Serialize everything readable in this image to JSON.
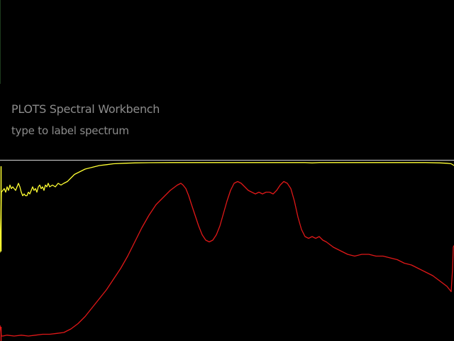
{
  "app": {
    "title": "PLOTS Spectral Workbench"
  },
  "label_input": {
    "placeholder": "type to label spectrum",
    "value": ""
  },
  "colors": {
    "background": "#000000",
    "text": "#8c8c8c",
    "divider": "#d8d8d8",
    "trace_yellow": "#ffff33",
    "trace_red": "#e01818"
  },
  "chart_data": {
    "type": "line",
    "title": "",
    "xlabel": "",
    "ylabel": "",
    "grid": false,
    "xlim": [
      0,
      640
    ],
    "ylim": [
      0,
      1
    ],
    "series": [
      {
        "color": "#ffff33",
        "x": [
          0,
          2,
          4,
          6,
          8,
          10,
          12,
          14,
          16,
          18,
          20,
          22,
          24,
          26,
          28,
          30,
          32,
          34,
          36,
          38,
          40,
          42,
          44,
          46,
          48,
          50,
          52,
          54,
          56,
          58,
          60,
          62,
          64,
          66,
          68,
          70,
          74,
          78,
          82,
          86,
          90,
          95,
          100,
          105,
          110,
          115,
          120,
          130,
          140,
          150,
          160,
          175,
          190,
          210,
          240,
          280,
          320,
          360,
          400,
          430,
          440,
          450,
          460,
          480,
          520,
          560,
          600,
          620,
          630,
          636,
          640
        ],
        "values": [
          0.49,
          0.83,
          0.84,
          0.85,
          0.83,
          0.86,
          0.84,
          0.87,
          0.85,
          0.86,
          0.85,
          0.84,
          0.86,
          0.88,
          0.86,
          0.83,
          0.81,
          0.82,
          0.81,
          0.81,
          0.83,
          0.82,
          0.84,
          0.86,
          0.84,
          0.85,
          0.83,
          0.86,
          0.87,
          0.85,
          0.86,
          0.84,
          0.87,
          0.86,
          0.88,
          0.86,
          0.87,
          0.86,
          0.88,
          0.87,
          0.88,
          0.89,
          0.91,
          0.93,
          0.94,
          0.95,
          0.96,
          0.97,
          0.98,
          0.985,
          0.99,
          0.993,
          0.995,
          0.996,
          0.997,
          0.997,
          0.997,
          0.997,
          0.997,
          0.997,
          0.995,
          0.997,
          0.997,
          0.997,
          0.997,
          0.997,
          0.997,
          0.995,
          0.993,
          0.99,
          0.98
        ]
      },
      {
        "color": "#e01818",
        "x": [
          0,
          2,
          4,
          10,
          20,
          30,
          40,
          50,
          60,
          70,
          80,
          90,
          100,
          110,
          120,
          130,
          140,
          150,
          160,
          170,
          180,
          190,
          200,
          210,
          220,
          230,
          240,
          250,
          255,
          258,
          262,
          266,
          270,
          275,
          280,
          285,
          290,
          295,
          300,
          305,
          310,
          315,
          320,
          325,
          330,
          335,
          340,
          345,
          350,
          355,
          360,
          365,
          370,
          375,
          380,
          385,
          390,
          395,
          400,
          405,
          410,
          415,
          420,
          425,
          430,
          435,
          440,
          445,
          450,
          455,
          460,
          470,
          480,
          490,
          500,
          510,
          520,
          530,
          540,
          550,
          560,
          570,
          580,
          590,
          600,
          610,
          620,
          630,
          636,
          638,
          639,
          640
        ],
        "values": [
          0.08,
          0.02,
          0.02,
          0.025,
          0.02,
          0.025,
          0.02,
          0.025,
          0.03,
          0.03,
          0.035,
          0.04,
          0.06,
          0.09,
          0.13,
          0.18,
          0.23,
          0.28,
          0.34,
          0.4,
          0.47,
          0.55,
          0.63,
          0.7,
          0.76,
          0.8,
          0.84,
          0.87,
          0.88,
          0.87,
          0.85,
          0.81,
          0.76,
          0.7,
          0.64,
          0.59,
          0.56,
          0.55,
          0.56,
          0.59,
          0.64,
          0.71,
          0.78,
          0.84,
          0.88,
          0.89,
          0.88,
          0.86,
          0.84,
          0.83,
          0.82,
          0.83,
          0.82,
          0.83,
          0.83,
          0.82,
          0.84,
          0.87,
          0.89,
          0.88,
          0.85,
          0.78,
          0.69,
          0.62,
          0.58,
          0.57,
          0.58,
          0.57,
          0.58,
          0.56,
          0.55,
          0.52,
          0.5,
          0.48,
          0.47,
          0.48,
          0.48,
          0.47,
          0.47,
          0.46,
          0.45,
          0.43,
          0.42,
          0.4,
          0.38,
          0.36,
          0.33,
          0.3,
          0.27,
          0.4,
          0.52,
          0.53
        ]
      }
    ]
  }
}
